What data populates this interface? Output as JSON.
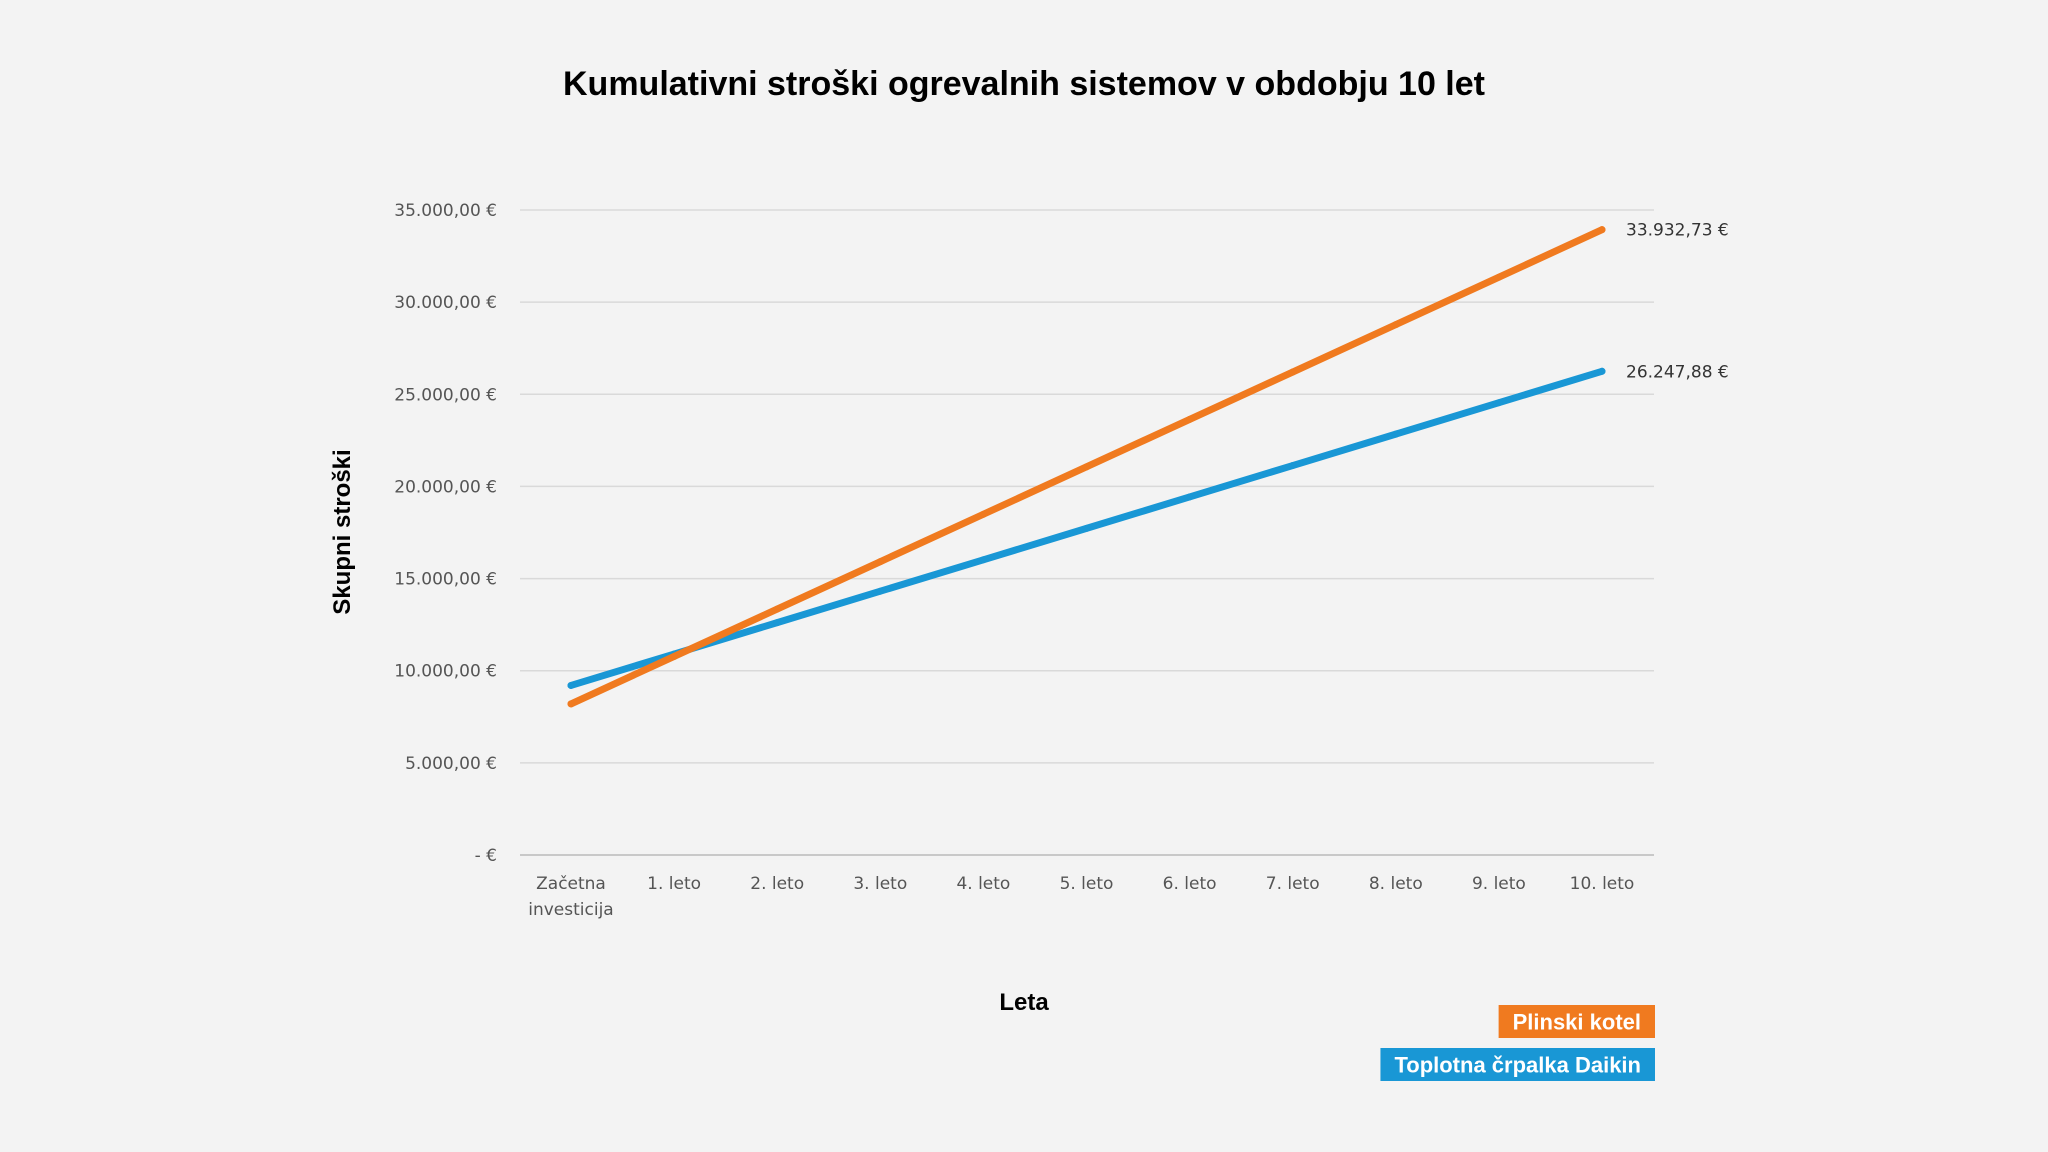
{
  "chart_data": {
    "type": "line",
    "title": "Kumulativni stroški ogrevalnih sistemov v obdobju 10 let",
    "xlabel": "Leta",
    "ylabel": "Skupni stroški",
    "categories": [
      [
        "Začetna",
        "investicija"
      ],
      [
        "1. leto"
      ],
      [
        "2. leto"
      ],
      [
        "3. leto"
      ],
      [
        "4. leto"
      ],
      [
        "5. leto"
      ],
      [
        "6. leto"
      ],
      [
        "7. leto"
      ],
      [
        "8. leto"
      ],
      [
        "9. leto"
      ],
      [
        "10. leto"
      ]
    ],
    "ylim": [
      0,
      35000
    ],
    "yticks": [
      0,
      5000,
      10000,
      15000,
      20000,
      25000,
      30000,
      35000
    ],
    "ytick_labels": [
      "-  €",
      "5.000,00 €",
      "10.000,00 €",
      "15.000,00 €",
      "20.000,00 €",
      "25.000,00 €",
      "30.000,00 €",
      "35.000,00 €"
    ],
    "grid": true,
    "legend_position": "bottom-right",
    "series": [
      {
        "name": "Plinski kotel",
        "color": "#f07a1f",
        "values": [
          8200,
          10772.5,
          13345.1,
          15917.6,
          18490.2,
          21062.7,
          23635.2,
          26207.8,
          28780.3,
          31352.9,
          33932.73
        ],
        "end_label": "33.932,73 €"
      },
      {
        "name": "Toplotna črpalka Daikin",
        "color": "#1997d5",
        "values": [
          9200,
          10904.8,
          12609.6,
          14314.4,
          16019.2,
          17723.9,
          19428.7,
          21133.5,
          22838.3,
          24543.1,
          26247.88
        ],
        "end_label": "26.247,88 €"
      }
    ]
  }
}
